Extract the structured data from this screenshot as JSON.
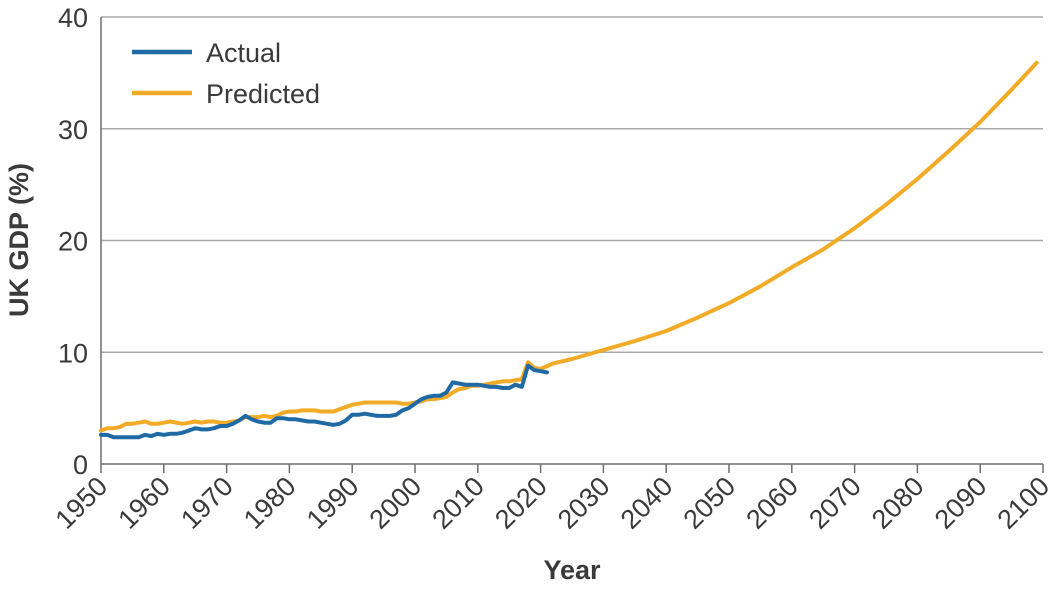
{
  "chart_data": {
    "type": "line",
    "title": "",
    "xlabel": "Year",
    "ylabel": "UK GDP (%)",
    "xlim": [
      1950,
      2100
    ],
    "ylim": [
      0,
      40
    ],
    "x_ticks": [
      "1950",
      "1960",
      "1970",
      "1980",
      "1990",
      "2000",
      "2010",
      "2020",
      "2030",
      "2040",
      "2050",
      "2060",
      "2070",
      "2080",
      "2090",
      "2100"
    ],
    "y_ticks": [
      "0",
      "10",
      "20",
      "30",
      "40"
    ],
    "grid": "horizontal",
    "legend_position": "top-left",
    "series": [
      {
        "name": "Actual",
        "color": "#1f6aa5",
        "x": [
          1950,
          1951,
          1952,
          1953,
          1954,
          1955,
          1956,
          1957,
          1958,
          1959,
          1960,
          1961,
          1962,
          1963,
          1964,
          1965,
          1966,
          1967,
          1968,
          1969,
          1970,
          1971,
          1972,
          1973,
          1974,
          1975,
          1976,
          1977,
          1978,
          1979,
          1980,
          1981,
          1982,
          1983,
          1984,
          1985,
          1986,
          1987,
          1988,
          1989,
          1990,
          1991,
          1992,
          1993,
          1994,
          1995,
          1996,
          1997,
          1998,
          1999,
          2000,
          2001,
          2002,
          2003,
          2004,
          2005,
          2006,
          2007,
          2008,
          2009,
          2010,
          2011,
          2012,
          2013,
          2014,
          2015,
          2016,
          2017,
          2018,
          2019,
          2020,
          2021
        ],
        "y": [
          2.6,
          2.6,
          2.4,
          2.4,
          2.4,
          2.4,
          2.4,
          2.6,
          2.5,
          2.7,
          2.6,
          2.7,
          2.7,
          2.8,
          3.0,
          3.2,
          3.1,
          3.1,
          3.2,
          3.4,
          3.4,
          3.6,
          3.9,
          4.3,
          4.0,
          3.8,
          3.7,
          3.7,
          4.1,
          4.1,
          4.0,
          4.0,
          3.9,
          3.8,
          3.8,
          3.7,
          3.6,
          3.5,
          3.6,
          3.9,
          4.4,
          4.4,
          4.5,
          4.4,
          4.3,
          4.3,
          4.3,
          4.4,
          4.8,
          5.0,
          5.4,
          5.8,
          6.0,
          6.1,
          6.1,
          6.4,
          7.3,
          7.2,
          7.1,
          7.1,
          7.1,
          7.0,
          6.9,
          6.9,
          6.8,
          6.8,
          7.1,
          6.9,
          8.8,
          8.4,
          8.3,
          8.2
        ]
      },
      {
        "name": "Predicted",
        "color": "#f2ab26",
        "x": [
          1950,
          1951,
          1952,
          1953,
          1954,
          1955,
          1956,
          1957,
          1958,
          1959,
          1960,
          1961,
          1962,
          1963,
          1964,
          1965,
          1966,
          1967,
          1968,
          1969,
          1970,
          1971,
          1972,
          1973,
          1974,
          1975,
          1976,
          1977,
          1978,
          1979,
          1980,
          1981,
          1982,
          1983,
          1984,
          1985,
          1986,
          1987,
          1988,
          1989,
          1990,
          1991,
          1992,
          1993,
          1994,
          1995,
          1996,
          1997,
          1998,
          1999,
          2000,
          2001,
          2002,
          2003,
          2004,
          2005,
          2006,
          2007,
          2008,
          2009,
          2010,
          2011,
          2012,
          2013,
          2014,
          2015,
          2016,
          2017,
          2018,
          2019,
          2020,
          2022,
          2025,
          2030,
          2035,
          2040,
          2045,
          2050,
          2055,
          2060,
          2065,
          2070,
          2075,
          2080,
          2085,
          2090,
          2095,
          2099
        ],
        "y": [
          3.0,
          3.2,
          3.2,
          3.3,
          3.6,
          3.6,
          3.7,
          3.8,
          3.6,
          3.6,
          3.7,
          3.8,
          3.7,
          3.6,
          3.7,
          3.8,
          3.7,
          3.8,
          3.8,
          3.7,
          3.7,
          3.8,
          3.9,
          4.2,
          4.2,
          4.2,
          4.3,
          4.2,
          4.3,
          4.6,
          4.7,
          4.7,
          4.8,
          4.8,
          4.8,
          4.7,
          4.7,
          4.7,
          4.9,
          5.1,
          5.3,
          5.4,
          5.5,
          5.5,
          5.5,
          5.5,
          5.5,
          5.5,
          5.4,
          5.4,
          5.5,
          5.6,
          5.8,
          5.8,
          5.9,
          6.0,
          6.4,
          6.7,
          6.8,
          7.0,
          7.0,
          7.1,
          7.2,
          7.3,
          7.4,
          7.4,
          7.5,
          7.6,
          9.1,
          8.6,
          8.5,
          9.0,
          9.4,
          10.2,
          11.0,
          11.9,
          13.1,
          14.4,
          15.9,
          17.6,
          19.2,
          21.1,
          23.2,
          25.5,
          28.0,
          30.6,
          33.5,
          35.9
        ]
      }
    ]
  }
}
